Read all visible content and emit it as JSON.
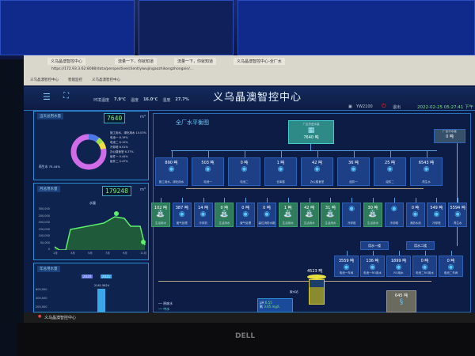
{
  "browser": {
    "tabs": [
      "义乌晶澳智控中心",
      "流量一下，你就知道",
      "流量一下，你就知道",
      "义乌晶澳智控中心-全厂水"
    ],
    "url": "https://172.93.3.62:8088/data/perspective/client/yiwujingaozhikongzhongxin/...",
    "bookmarks": [
      "义乌晶澳智控中心",
      "智能监控",
      "义乌晶澳智控中心"
    ]
  },
  "header": {
    "title": "义乌晶澳智控中心",
    "env": [
      {
        "label": "环境温度",
        "value": "7.9℃"
      },
      {
        "label": "温度",
        "value": "16.0℃"
      },
      {
        "label": "湿度",
        "value": "27.7%"
      }
    ],
    "user": "YW2100",
    "logout": "退出",
    "datetime": "2022-02-25 05:27:41 下午"
  },
  "left": {
    "panel1": {
      "title": "当天总用水量",
      "lcd": "7640",
      "unit": "m³",
      "legend": [
        "施工用水、绿化用水 10.03%",
        "电池一 6.19%",
        "电池二 6.12%",
        "冷却塔 6.01%",
        "办公楼食堂 6.37%",
        "组件一 0.44%",
        "组件二 0.47%"
      ],
      "main_label": "再生水 75.44%"
    },
    "panel2": {
      "title": "月总用水量",
      "lcd": "179248",
      "unit": "m³",
      "legend": "水量",
      "yunit": "m³",
      "yticks": [
        "300,000",
        "250,000",
        "200,000",
        "150,000",
        "100,000",
        "50,000",
        "0"
      ],
      "xticks": [
        "1月",
        "3月",
        "5月",
        "7月",
        "9月",
        "11月"
      ]
    },
    "panel3": {
      "title": "年总用水量",
      "legend": [
        "2020",
        "2021"
      ],
      "bar_label": "2141.5624",
      "yunit": "m³",
      "yticks": [
        "600,000",
        "400,000",
        "200,000"
      ]
    }
  },
  "main": {
    "title": "全厂水平衡图",
    "source": {
      "label": "厂区总进水量",
      "value": "7640",
      "unit": "吨"
    },
    "reuse": {
      "label": "厂区中水量",
      "value": "0",
      "unit": "吨"
    },
    "row1": [
      {
        "v": "890",
        "l": "施工用水、绿化用水"
      },
      {
        "v": "503",
        "l": "电池一"
      },
      {
        "v": "0",
        "l": "电池二"
      },
      {
        "v": "1",
        "l": "仓库楼"
      },
      {
        "v": "42",
        "l": "办公楼食堂"
      },
      {
        "v": "36",
        "l": "组件一"
      },
      {
        "v": "25",
        "l": "组件二"
      },
      {
        "v": "6543",
        "l": "再生水"
      }
    ],
    "row2": [
      {
        "v": "102",
        "l": "生活用水",
        "g": 1
      },
      {
        "v": "387",
        "l": "废气处理"
      },
      {
        "v": "14",
        "l": "冷却机"
      },
      {
        "v": "0",
        "l": "生活用水",
        "g": 1
      },
      {
        "v": "0",
        "l": "废气处理"
      },
      {
        "v": "0",
        "l": "高位消防水箱"
      },
      {
        "v": "1",
        "l": "生活用水",
        "g": 1
      },
      {
        "v": "42",
        "l": "生活用水",
        "g": 1
      },
      {
        "v": "31",
        "l": "生活用水",
        "g": 1
      },
      {
        "v": "",
        "l": "冷却塔"
      },
      {
        "v": "30",
        "l": "生活用水",
        "g": 1
      },
      {
        "v": "",
        "l": "冷却塔"
      },
      {
        "v": "0",
        "l": "消防水池"
      },
      {
        "v": "549",
        "l": "冷却塔"
      },
      {
        "v": "5594",
        "l": "再生水"
      }
    ],
    "groups": [
      "用水一楼",
      "用水二楼"
    ],
    "row3": [
      {
        "v": "3559",
        "l": "电池一车间"
      },
      {
        "v": "136",
        "l": "电池一RO用水"
      },
      {
        "v": "1899",
        "l": "RO用水"
      },
      {
        "v": "0",
        "l": "电池二RO用水"
      },
      {
        "v": "0",
        "l": "电池二车间"
      }
    ],
    "tank": {
      "v": "4523",
      "unit": "吨",
      "l": "废水站"
    },
    "treat": {
      "v": "645",
      "unit": "吨"
    },
    "quality": [
      {
        "k": "pH",
        "v": "6.55"
      },
      {
        "k": "氟",
        "v": "3.65 mg/L"
      }
    ],
    "legend": [
      "原废水",
      "中水"
    ]
  },
  "taskbar": {
    "app": "义乌晶澳智控中心"
  },
  "monitor": {
    "brand": "DELL"
  }
}
